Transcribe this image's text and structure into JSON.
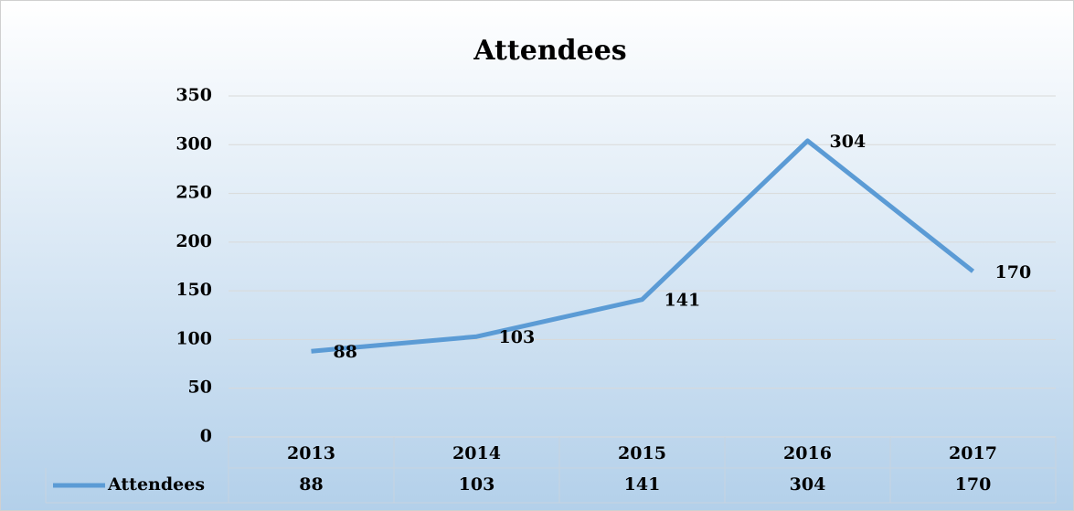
{
  "chart_data": {
    "type": "line",
    "title": "Attendees",
    "categories": [
      "2013",
      "2014",
      "2015",
      "2016",
      "2017"
    ],
    "series": [
      {
        "name": "Attendees",
        "color": "#5b9bd5",
        "values": [
          88,
          103,
          141,
          304,
          170
        ]
      }
    ],
    "ylim": [
      0,
      350
    ],
    "yticks": [
      0,
      50,
      100,
      150,
      200,
      250,
      300,
      350
    ],
    "grid": true,
    "legend": "bottom"
  }
}
